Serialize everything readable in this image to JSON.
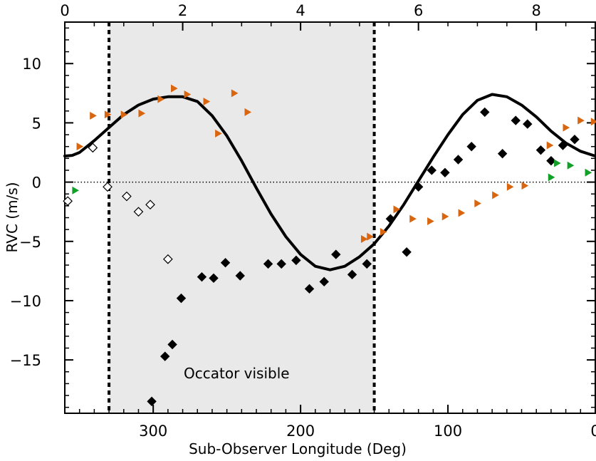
{
  "chart_data": {
    "type": "scatter",
    "title": "",
    "xlabel": "Sub-Observer Longitude (Deg)",
    "ylabel": "RVC (m/s)",
    "xlim": [
      360,
      0
    ],
    "ylim": [
      -19.5,
      13.5
    ],
    "xticks": [
      300,
      200,
      100,
      0
    ],
    "yticks": [
      10,
      5,
      0,
      -5,
      -10,
      -15
    ],
    "top_axis": {
      "xlim": [
        0,
        9
      ],
      "ticks": [
        0,
        2,
        4,
        6,
        8
      ]
    },
    "annotation": "Occator visible",
    "shaded_region": [
      330,
      150
    ],
    "vertical_dashed_lines": [
      330,
      150
    ],
    "horizontal_dotted_line": 0,
    "colors": {
      "curve": "#000000",
      "filled_diamonds": "#000000",
      "open_diamonds": "#ffffff",
      "orange_triangles": "#d9650f",
      "green_triangles": "#13a028",
      "shade": "#e9e9e9"
    },
    "series": [
      {
        "marker": "filled-diamond",
        "points": [
          [
            301,
            -18.5
          ],
          [
            292,
            -14.7
          ],
          [
            287,
            -13.7
          ],
          [
            281,
            -9.8
          ],
          [
            267,
            -8.0
          ],
          [
            259,
            -8.1
          ],
          [
            251,
            -6.8
          ],
          [
            241,
            -7.9
          ],
          [
            222,
            -6.9
          ],
          [
            213,
            -6.9
          ],
          [
            203,
            -6.6
          ],
          [
            194,
            -9.0
          ],
          [
            184,
            -8.4
          ],
          [
            176,
            -6.1
          ],
          [
            165,
            -7.8
          ],
          [
            155,
            -6.9
          ],
          [
            139,
            -3.1
          ],
          [
            128,
            -5.9
          ],
          [
            120,
            -0.4
          ],
          [
            111,
            1.0
          ],
          [
            102,
            0.8
          ],
          [
            93,
            1.9
          ],
          [
            84,
            3.0
          ],
          [
            75,
            5.9
          ],
          [
            63,
            2.4
          ],
          [
            54,
            5.2
          ],
          [
            46,
            4.9
          ],
          [
            37,
            2.7
          ],
          [
            30,
            1.8
          ],
          [
            22,
            3.1
          ],
          [
            14,
            3.6
          ]
        ]
      },
      {
        "marker": "open-diamond",
        "points": [
          [
            358,
            -1.6
          ],
          [
            341,
            2.9
          ],
          [
            331,
            -0.4
          ],
          [
            318,
            -1.2
          ],
          [
            310,
            -2.5
          ],
          [
            302,
            -1.9
          ],
          [
            290,
            -6.5
          ]
        ]
      },
      {
        "marker": "orange-triangle",
        "points": [
          [
            350,
            3.0
          ],
          [
            341,
            5.6
          ],
          [
            331,
            5.7
          ],
          [
            320,
            5.7
          ],
          [
            308,
            5.8
          ],
          [
            295,
            7.0
          ],
          [
            286,
            7.9
          ],
          [
            277,
            7.4
          ],
          [
            264,
            6.8
          ],
          [
            256,
            4.1
          ],
          [
            245,
            7.5
          ],
          [
            236,
            5.9
          ],
          [
            157,
            -4.8
          ],
          [
            153,
            -4.6
          ],
          [
            144,
            -4.2
          ],
          [
            135,
            -2.3
          ],
          [
            124,
            -3.1
          ],
          [
            112,
            -3.3
          ],
          [
            102,
            -2.9
          ],
          [
            91,
            -2.6
          ],
          [
            80,
            -1.8
          ],
          [
            68,
            -1.1
          ],
          [
            58,
            -0.4
          ],
          [
            48,
            -0.3
          ],
          [
            31,
            3.1
          ],
          [
            20,
            4.6
          ],
          [
            10,
            5.2
          ],
          [
            1,
            5.1
          ]
        ]
      },
      {
        "marker": "green-triangle",
        "points": [
          [
            353,
            -0.7
          ],
          [
            30,
            0.4
          ],
          [
            26,
            1.6
          ],
          [
            17,
            1.4
          ],
          [
            5,
            0.8
          ]
        ]
      }
    ],
    "model_curve": {
      "label": "",
      "points": [
        [
          360,
          2.2
        ],
        [
          355,
          2.25
        ],
        [
          350,
          2.5
        ],
        [
          345,
          3.0
        ],
        [
          340,
          3.5
        ],
        [
          330,
          4.6
        ],
        [
          320,
          5.7
        ],
        [
          310,
          6.5
        ],
        [
          300,
          7.0
        ],
        [
          290,
          7.2
        ],
        [
          280,
          7.2
        ],
        [
          270,
          6.8
        ],
        [
          260,
          5.6
        ],
        [
          250,
          3.9
        ],
        [
          240,
          1.8
        ],
        [
          230,
          -0.5
        ],
        [
          220,
          -2.7
        ],
        [
          210,
          -4.6
        ],
        [
          200,
          -6.1
        ],
        [
          190,
          -7.1
        ],
        [
          180,
          -7.4
        ],
        [
          170,
          -7.1
        ],
        [
          160,
          -6.3
        ],
        [
          150,
          -5.2
        ],
        [
          140,
          -3.7
        ],
        [
          130,
          -1.9
        ],
        [
          120,
          0.1
        ],
        [
          110,
          2.1
        ],
        [
          100,
          4.0
        ],
        [
          90,
          5.7
        ],
        [
          80,
          6.9
        ],
        [
          70,
          7.4
        ],
        [
          60,
          7.2
        ],
        [
          50,
          6.5
        ],
        [
          40,
          5.5
        ],
        [
          30,
          4.3
        ],
        [
          20,
          3.3
        ],
        [
          10,
          2.6
        ],
        [
          0,
          2.2
        ]
      ]
    }
  }
}
